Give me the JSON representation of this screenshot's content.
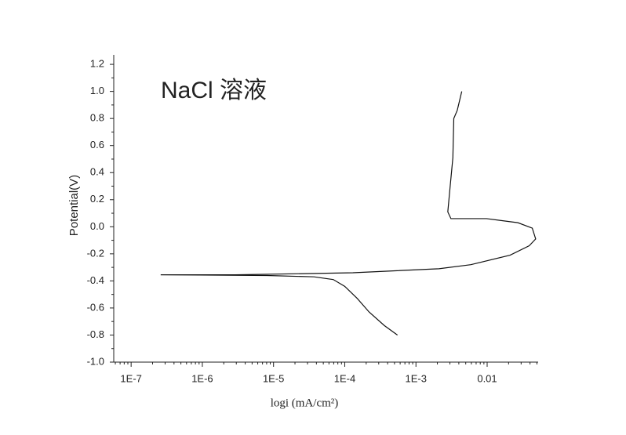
{
  "chart_data": {
    "type": "line",
    "title": "NaCl 溶液",
    "x_label": "logi (mA/cm²)",
    "y_label": "Potential(V)",
    "x_scale": "log",
    "xlim": [
      5.7e-08,
      0.052
    ],
    "ylim": [
      -1.0,
      1.27
    ],
    "xticks": [
      {
        "value": 1e-07,
        "label": "1E-7"
      },
      {
        "value": 1e-06,
        "label": "1E-6"
      },
      {
        "value": 1e-05,
        "label": "1E-5"
      },
      {
        "value": 0.0001,
        "label": "1E-4"
      },
      {
        "value": 0.001,
        "label": "1E-3"
      },
      0.01
    ],
    "yticks": [
      {
        "value": -1,
        "label": "-1.0"
      },
      -0.8,
      -0.6,
      -0.4,
      -0.2,
      {
        "value": 0,
        "label": "0.0"
      },
      0.2,
      0.4,
      0.6,
      0.8,
      {
        "value": 1,
        "label": "1.0"
      },
      1.2
    ],
    "series": [
      {
        "color": "#111111",
        "x": [
          0.00055,
          0.00036,
          0.00022,
          0.00015,
          0.0001,
          6.9e-05,
          3.7e-05,
          8.1e-06,
          2.6e-07,
          2.9e-06,
          0.00013,
          0.0021,
          0.0059,
          0.021,
          0.039,
          0.048,
          0.043,
          0.027,
          0.0098,
          0.0031,
          0.0028,
          0.003,
          0.0033,
          0.0034,
          0.0038,
          0.0044
        ],
        "values": [
          -0.8,
          -0.73,
          -0.63,
          -0.53,
          -0.44,
          -0.39,
          -0.37,
          -0.36,
          -0.355,
          -0.355,
          -0.34,
          -0.31,
          -0.28,
          -0.21,
          -0.14,
          -0.09,
          -0.01,
          0.03,
          0.06,
          0.06,
          0.11,
          0.28,
          0.51,
          0.8,
          0.86,
          1.0
        ]
      }
    ]
  }
}
